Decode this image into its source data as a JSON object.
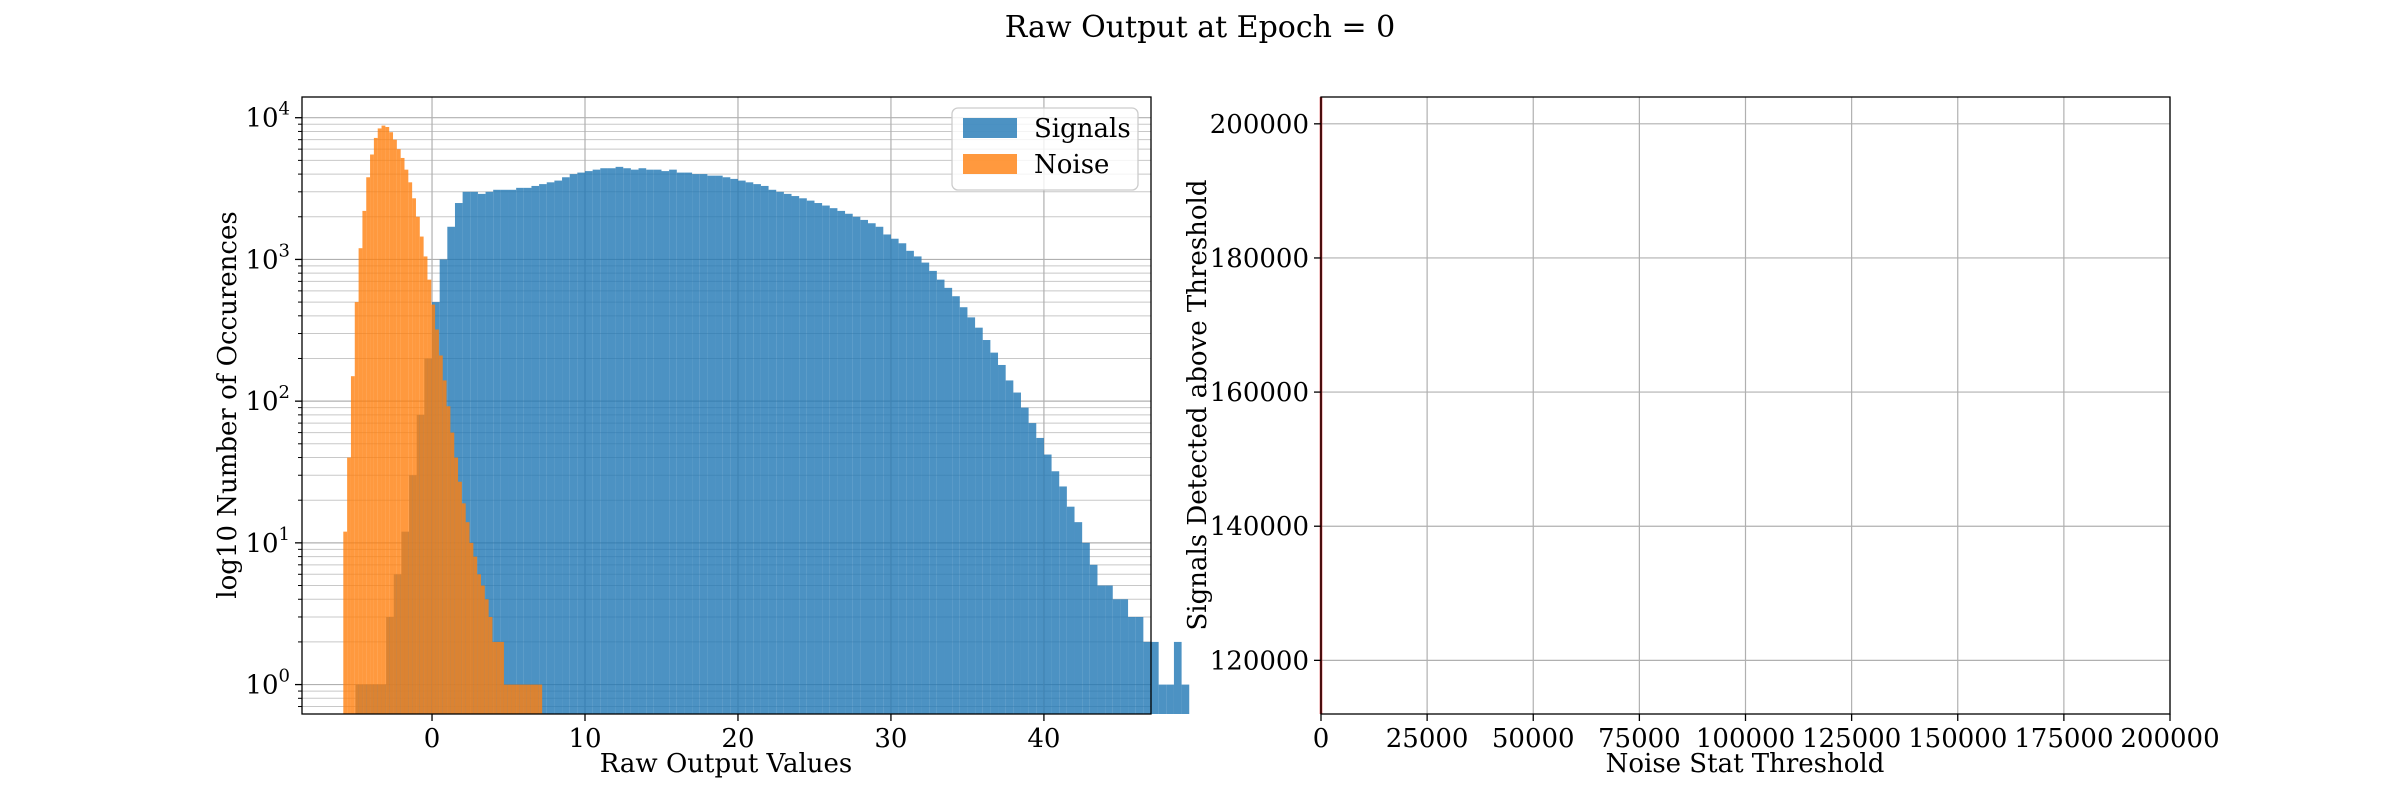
{
  "figure": {
    "suptitle": "Raw Output at Epoch = 0"
  },
  "chart_data": [
    {
      "type": "bar",
      "subtype": "histogram",
      "title": "",
      "xlabel": "Raw Output Values",
      "ylabel": "log10 Number of Occurences",
      "yscale": "log",
      "xlim": [
        -8.5,
        47
      ],
      "ylim": [
        0.62,
        14000
      ],
      "xticks": [
        0,
        10,
        20,
        30,
        40
      ],
      "xtick_labels": [
        "0",
        "10",
        "20",
        "30",
        "40"
      ],
      "yticks": [
        1,
        10,
        100,
        1000,
        10000
      ],
      "ytick_labels": [
        "10^0",
        "10^1",
        "10^2",
        "10^3",
        "10^4"
      ],
      "grid": true,
      "legend": {
        "placement": "top-right",
        "entries": [
          "Signals",
          "Noise"
        ]
      },
      "series": [
        {
          "name": "Signals",
          "color": "#1f77b4",
          "alpha": 0.8,
          "bin_start": -5.0,
          "bin_width": 0.5,
          "values": [
            1,
            1,
            1,
            1,
            3,
            6,
            12,
            30,
            80,
            200,
            500,
            1000,
            1700,
            2500,
            3000,
            3000,
            2900,
            3000,
            3100,
            3100,
            3100,
            3200,
            3200,
            3300,
            3400,
            3500,
            3600,
            3800,
            4000,
            4100,
            4200,
            4300,
            4400,
            4400,
            4500,
            4400,
            4300,
            4400,
            4300,
            4300,
            4200,
            4300,
            4100,
            4100,
            4000,
            4000,
            3900,
            3900,
            3800,
            3700,
            3600,
            3500,
            3400,
            3300,
            3100,
            3000,
            2900,
            2800,
            2700,
            2600,
            2500,
            2400,
            2300,
            2200,
            2100,
            2000,
            1900,
            1800,
            1700,
            1500,
            1400,
            1300,
            1150,
            1050,
            950,
            830,
            720,
            630,
            550,
            460,
            390,
            330,
            270,
            220,
            180,
            140,
            115,
            90,
            70,
            55,
            42,
            32,
            25,
            18,
            14,
            10,
            7,
            5,
            5,
            4,
            4,
            3,
            3,
            2,
            2,
            1,
            1,
            2,
            1
          ]
        },
        {
          "name": "Noise",
          "color": "#ff7f0e",
          "alpha": 0.8,
          "bin_start": -5.8,
          "bin_width": 0.25,
          "values": [
            12,
            40,
            150,
            500,
            1200,
            2200,
            3800,
            5500,
            7200,
            8400,
            8800,
            8600,
            7900,
            7000,
            6000,
            5200,
            4300,
            3500,
            2700,
            2000,
            1450,
            1050,
            720,
            480,
            320,
            210,
            140,
            92,
            60,
            40,
            27,
            19,
            14,
            10,
            8,
            6,
            5,
            4,
            3,
            2,
            2,
            2,
            1,
            1,
            1,
            1,
            1,
            1,
            1,
            1,
            1,
            1
          ]
        }
      ]
    },
    {
      "type": "line",
      "title": "",
      "xlabel": "Noise Stat Threshold",
      "ylabel": "Signals Detected above Threshold",
      "xlim": [
        0,
        200000
      ],
      "ylim": [
        112000,
        204000
      ],
      "xticks": [
        0,
        25000,
        50000,
        75000,
        100000,
        125000,
        150000,
        175000,
        200000
      ],
      "xtick_labels": [
        "0",
        "25000",
        "50000",
        "75000",
        "100000",
        "125000",
        "150000",
        "175000",
        "200000"
      ],
      "yticks": [
        120000,
        140000,
        160000,
        180000,
        200000
      ],
      "ytick_labels": [
        "120000",
        "140000",
        "160000",
        "180000",
        "200000"
      ],
      "grid": true,
      "series": [
        {
          "color": "#d62728",
          "x": [
            0,
            0
          ],
          "y": [
            112000,
            204000
          ]
        }
      ]
    }
  ]
}
